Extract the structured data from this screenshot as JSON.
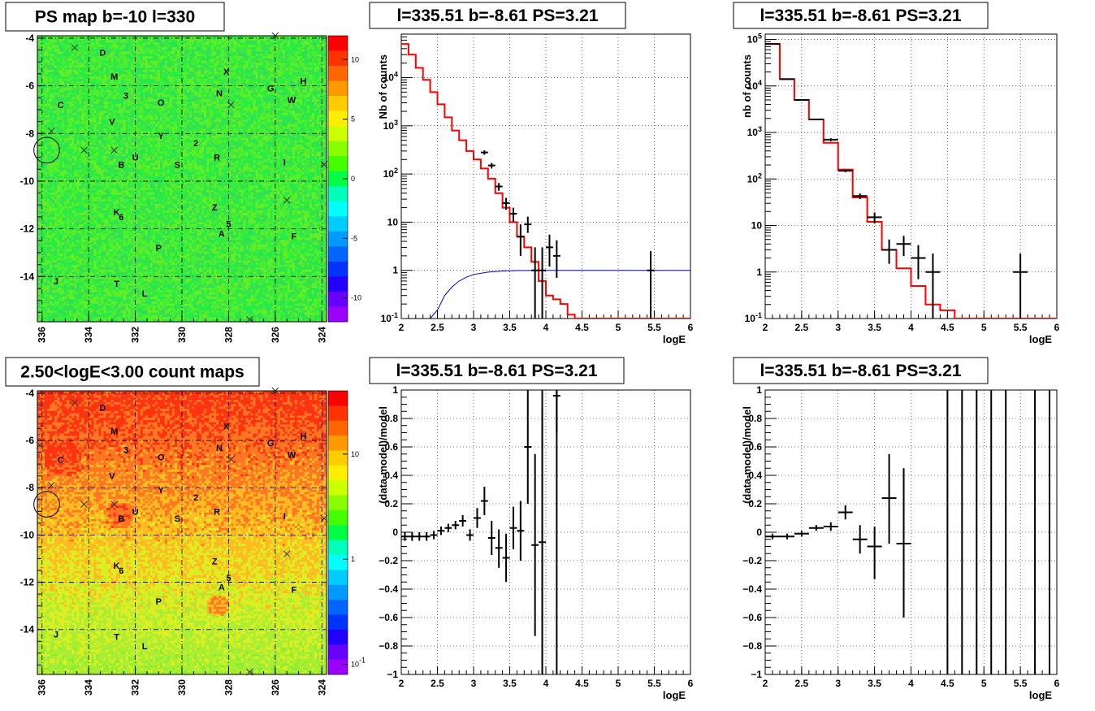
{
  "chart_data": [
    {
      "type": "heatmap",
      "title": "PS map b=-10 l=330",
      "x_ticks": [
        "336",
        "334",
        "332",
        "330",
        "328",
        "326",
        "324"
      ],
      "y_ticks": [
        "-4",
        "-6",
        "-8",
        "-10",
        "-12",
        "-14"
      ],
      "xlim": [
        336.2,
        323.8
      ],
      "ylim": [
        -15.9,
        -3.9
      ],
      "z_ticks": [
        "10",
        "5",
        "0",
        "-5",
        "-10"
      ],
      "z_tick_values": [
        10,
        5,
        0,
        -5,
        -10
      ],
      "zlim": [
        -12,
        12
      ],
      "zscale": "linear",
      "colorbar": [
        "#ff0000",
        "#ff3300",
        "#ff6600",
        "#ff9900",
        "#ffcc00",
        "#ffee00",
        "#ccff00",
        "#88ff00",
        "#44ff00",
        "#00ff44",
        "#00ffbb",
        "#00ffff",
        "#00ccff",
        "#0099ff",
        "#0066ff",
        "#0033ff",
        "#2200ff",
        "#6600ff",
        "#9900ff"
      ],
      "map_colors": [
        "#22ee44",
        "#44ee33",
        "#66ee22",
        "#33dd55"
      ],
      "sources": [
        {
          "label": "D",
          "l": 333.4,
          "b": -4.6
        },
        {
          "label": "M",
          "l": 332.9,
          "b": -5.6
        },
        {
          "label": "X",
          "l": 328.1,
          "b": -5.4
        },
        {
          "label": "H",
          "l": 324.8,
          "b": -5.8
        },
        {
          "label": "G",
          "l": 326.2,
          "b": -6.1
        },
        {
          "label": "N",
          "l": 328.4,
          "b": -6.3
        },
        {
          "label": "W",
          "l": 325.3,
          "b": -6.6
        },
        {
          "label": "C",
          "l": 335.2,
          "b": -6.8
        },
        {
          "label": "3",
          "l": 332.4,
          "b": -6.4
        },
        {
          "label": "O",
          "l": 330.9,
          "b": -6.7
        },
        {
          "label": "V",
          "l": 333.0,
          "b": -7.5
        },
        {
          "label": "Y",
          "l": 330.9,
          "b": -8.1
        },
        {
          "label": "2",
          "l": 329.4,
          "b": -8.4
        },
        {
          "label": "U",
          "l": 332.0,
          "b": -9.0
        },
        {
          "label": "R",
          "l": 328.5,
          "b": -9.0
        },
        {
          "label": "I",
          "l": 325.6,
          "b": -9.2
        },
        {
          "label": "B",
          "l": 332.6,
          "b": -9.3
        },
        {
          "label": "S",
          "l": 330.2,
          "b": -9.3
        },
        {
          "label": "Z",
          "l": 328.6,
          "b": -11.1
        },
        {
          "label": "K",
          "l": 332.8,
          "b": -11.3
        },
        {
          "label": "6",
          "l": 332.6,
          "b": -11.5
        },
        {
          "label": "5",
          "l": 328.0,
          "b": -11.8
        },
        {
          "label": "A",
          "l": 328.3,
          "b": -12.2
        },
        {
          "label": "F",
          "l": 325.2,
          "b": -12.3
        },
        {
          "label": "P",
          "l": 331.0,
          "b": -12.8
        },
        {
          "label": "J",
          "l": 335.4,
          "b": -14.2
        },
        {
          "label": "T",
          "l": 332.8,
          "b": -14.3
        },
        {
          "label": "L",
          "l": 331.6,
          "b": -14.7
        }
      ],
      "crosses": [
        [
          334.6,
          -4.4
        ],
        [
          326.0,
          -3.9
        ],
        [
          327.9,
          -6.8
        ],
        [
          335.6,
          -7.9
        ],
        [
          334.2,
          -8.7
        ],
        [
          332.9,
          -8.7
        ],
        [
          323.9,
          -9.3
        ],
        [
          325.5,
          -10.8
        ],
        [
          327.1,
          -15.8
        ]
      ],
      "circle": {
        "l": 335.8,
        "b": -8.7,
        "r": 0.55
      }
    },
    {
      "type": "line",
      "title": "l=335.51 b=-8.61 PS=3.21",
      "xlabel": "logE",
      "ylabel": "Nb of counts",
      "yscale": "log",
      "xlim": [
        2,
        6
      ],
      "ylim": [
        0.1,
        80000
      ],
      "x_ticks": [
        "2",
        "2.5",
        "3",
        "3.5",
        "4",
        "4.5",
        "5",
        "5.5",
        "6"
      ],
      "y_ticks": [
        "10^-1",
        "1",
        "10",
        "10^2",
        "10^3",
        "10^4"
      ],
      "data_points": {
        "x": [
          3.15,
          3.25,
          3.35,
          3.45,
          3.55,
          3.65,
          3.75,
          3.85,
          3.95,
          4.05,
          4.15,
          5.45
        ],
        "y": [
          280,
          150,
          55,
          25,
          15,
          5,
          9,
          1,
          1,
          3,
          2,
          1
        ],
        "ylo": [
          250,
          130,
          45,
          18,
          10,
          2,
          6,
          0.1,
          0.1,
          1.2,
          0.7,
          0.1
        ],
        "yhi": [
          310,
          170,
          65,
          32,
          20,
          9,
          13,
          3,
          3,
          5.5,
          4.2,
          2.5
        ]
      },
      "model_step": {
        "edges": [
          2.0,
          2.1,
          2.2,
          2.3,
          2.4,
          2.5,
          2.6,
          2.7,
          2.8,
          2.9,
          3.0,
          3.1,
          3.2,
          3.3,
          3.4,
          3.5,
          3.6,
          3.7,
          3.8,
          3.9,
          4.0,
          4.1,
          4.2,
          4.3,
          4.4,
          6.0
        ],
        "values": [
          50000,
          30000,
          16000,
          9000,
          5000,
          2800,
          1500,
          800,
          500,
          300,
          200,
          130,
          80,
          40,
          20,
          10,
          5,
          3,
          1.5,
          0.6,
          0.3,
          0.25,
          0.2,
          0.12,
          0.1
        ]
      },
      "psf_curve": {
        "x": [
          2.4,
          2.5,
          2.6,
          2.7,
          2.8,
          2.9,
          3.0,
          3.2,
          3.4,
          3.6,
          4.0,
          6.0
        ],
        "y": [
          0.1,
          0.15,
          0.3,
          0.45,
          0.6,
          0.72,
          0.82,
          0.92,
          0.97,
          0.99,
          1.0,
          1.0
        ]
      },
      "colors": {
        "data": "#000000",
        "model": "#ff0000",
        "psf": "#0000cc"
      }
    },
    {
      "type": "line",
      "title": "l=335.51 b=-8.61 PS=3.21",
      "xlabel": "logE",
      "ylabel": "nb of counts",
      "yscale": "log",
      "xlim": [
        2,
        6
      ],
      "ylim": [
        0.1,
        130000
      ],
      "x_ticks": [
        "2",
        "2.5",
        "3",
        "3.5",
        "4",
        "4.5",
        "5",
        "5.5",
        "6"
      ],
      "y_ticks": [
        "10^-1",
        "1",
        "10",
        "10^2",
        "10^3",
        "10^4",
        "10^5"
      ],
      "data_points": {
        "x": [
          2.1,
          2.3,
          2.5,
          2.7,
          2.9,
          3.1,
          3.3,
          3.5,
          3.7,
          3.9,
          4.1,
          4.3,
          5.5
        ],
        "y": [
          80000,
          14000,
          5000,
          1900,
          700,
          150,
          43,
          15,
          3,
          4,
          2,
          1,
          1
        ],
        "ylo": [
          78000,
          13500,
          4800,
          1820,
          650,
          140,
          37,
          11,
          1.5,
          2.2,
          0.7,
          0.1,
          0.1
        ],
        "yhi": [
          82000,
          14500,
          5200,
          1980,
          750,
          160,
          49,
          19,
          5,
          6,
          3.8,
          2.5,
          2.5
        ],
        "xhw": 0.1
      },
      "model_step": {
        "edges": [
          2.0,
          2.2,
          2.4,
          2.6,
          2.8,
          3.0,
          3.2,
          3.4,
          3.6,
          3.8,
          4.0,
          4.2,
          4.4,
          4.6,
          6.0
        ],
        "values": [
          80000,
          14000,
          5000,
          1900,
          600,
          160,
          40,
          12,
          3,
          1.2,
          0.5,
          0.2,
          0.15,
          0.1
        ]
      },
      "colors": {
        "data": "#000000",
        "model": "#ff0000"
      }
    },
    {
      "type": "heatmap",
      "title": "2.50<logE<3.00 count maps",
      "x_ticks": [
        "336",
        "334",
        "332",
        "330",
        "328",
        "326",
        "324"
      ],
      "y_ticks": [
        "-4",
        "-6",
        "-8",
        "-10",
        "-12",
        "-14"
      ],
      "xlim": [
        336.2,
        323.8
      ],
      "ylim": [
        -15.9,
        -3.9
      ],
      "z_ticks": [
        "10",
        "1",
        "10^-1"
      ],
      "z_tick_values": [
        10,
        1,
        0.1
      ],
      "zlim": [
        0.08,
        40
      ],
      "zscale": "log",
      "colorbar": [
        "#ff0000",
        "#ff3300",
        "#ff6600",
        "#ff9900",
        "#ffcc00",
        "#ffee00",
        "#ccff00",
        "#88ff00",
        "#44ff00",
        "#00ff44",
        "#00ffbb",
        "#00ffff",
        "#00ccff",
        "#0099ff",
        "#0066ff",
        "#0033ff",
        "#2200ff",
        "#6600ff",
        "#9900ff"
      ],
      "map_colors": [
        "#ff3311",
        "#ff7722",
        "#ffbb22",
        "#ddee22",
        "#aaee33",
        "#88ee33"
      ],
      "sources": [
        {
          "label": "D",
          "l": 333.4,
          "b": -4.6
        },
        {
          "label": "M",
          "l": 332.9,
          "b": -5.6
        },
        {
          "label": "X",
          "l": 328.1,
          "b": -5.4
        },
        {
          "label": "H",
          "l": 324.8,
          "b": -5.8
        },
        {
          "label": "G",
          "l": 326.2,
          "b": -6.1
        },
        {
          "label": "N",
          "l": 328.4,
          "b": -6.3
        },
        {
          "label": "W",
          "l": 325.3,
          "b": -6.6
        },
        {
          "label": "C",
          "l": 335.2,
          "b": -6.8
        },
        {
          "label": "3",
          "l": 332.4,
          "b": -6.4
        },
        {
          "label": "O",
          "l": 330.9,
          "b": -6.7
        },
        {
          "label": "V",
          "l": 333.0,
          "b": -7.5
        },
        {
          "label": "Y",
          "l": 330.9,
          "b": -8.1
        },
        {
          "label": "2",
          "l": 329.4,
          "b": -8.4
        },
        {
          "label": "U",
          "l": 332.0,
          "b": -9.0
        },
        {
          "label": "R",
          "l": 328.5,
          "b": -9.0
        },
        {
          "label": "I",
          "l": 325.6,
          "b": -9.2
        },
        {
          "label": "B",
          "l": 332.6,
          "b": -9.3
        },
        {
          "label": "S",
          "l": 330.2,
          "b": -9.3
        },
        {
          "label": "Z",
          "l": 328.6,
          "b": -11.1
        },
        {
          "label": "K",
          "l": 332.8,
          "b": -11.3
        },
        {
          "label": "6",
          "l": 332.6,
          "b": -11.5
        },
        {
          "label": "5",
          "l": 328.0,
          "b": -11.8
        },
        {
          "label": "A",
          "l": 328.3,
          "b": -12.2
        },
        {
          "label": "F",
          "l": 325.2,
          "b": -12.3
        },
        {
          "label": "P",
          "l": 331.0,
          "b": -12.8
        },
        {
          "label": "J",
          "l": 335.4,
          "b": -14.2
        },
        {
          "label": "T",
          "l": 332.8,
          "b": -14.3
        },
        {
          "label": "L",
          "l": 331.6,
          "b": -14.7
        }
      ],
      "crosses": [
        [
          334.6,
          -4.4
        ],
        [
          326.0,
          -3.9
        ],
        [
          336.1,
          -6.2
        ],
        [
          327.9,
          -6.8
        ],
        [
          335.6,
          -7.9
        ],
        [
          334.2,
          -8.7
        ],
        [
          332.9,
          -8.7
        ],
        [
          323.9,
          -9.3
        ],
        [
          325.5,
          -10.8
        ],
        [
          327.1,
          -15.8
        ]
      ],
      "circle": {
        "l": 335.8,
        "b": -8.7,
        "r": 0.55
      }
    },
    {
      "type": "scatter",
      "title": "l=335.51 b=-8.61 PS=3.21",
      "xlabel": "logE",
      "ylabel": "(data-model)/model",
      "xlim": [
        2,
        6
      ],
      "ylim": [
        -1,
        1
      ],
      "x_ticks": [
        "2",
        "2.5",
        "3",
        "3.5",
        "4",
        "4.5",
        "5",
        "5.5",
        "6"
      ],
      "y_ticks": [
        "−1",
        "−0.8",
        "−0.6",
        "−0.4",
        "−0.2",
        "0",
        "0.2",
        "0.4",
        "0.6",
        "0.8",
        "1"
      ],
      "y_tick_values": [
        -1,
        -0.8,
        -0.6,
        -0.4,
        -0.2,
        0,
        0.2,
        0.4,
        0.6,
        0.8,
        1
      ],
      "points": {
        "x": [
          2.05,
          2.15,
          2.25,
          2.35,
          2.45,
          2.55,
          2.65,
          2.75,
          2.85,
          2.95,
          3.05,
          3.15,
          3.25,
          3.35,
          3.45,
          3.55,
          3.65,
          3.75,
          3.85,
          3.95,
          4.15
        ],
        "y": [
          -0.03,
          -0.03,
          -0.03,
          -0.03,
          -0.02,
          0.01,
          0.03,
          0.05,
          0.08,
          -0.02,
          0.1,
          0.22,
          -0.04,
          -0.11,
          -0.18,
          0.03,
          0.01,
          0.6,
          -0.09,
          -0.07,
          0.96
        ],
        "ylo": [
          -0.06,
          -0.06,
          -0.06,
          -0.06,
          -0.05,
          -0.02,
          0.0,
          0.02,
          0.04,
          -0.06,
          0.03,
          0.12,
          -0.16,
          -0.25,
          -0.35,
          -0.12,
          -0.2,
          0.2,
          -0.73,
          -1.0,
          0.7
        ],
        "yhi": [
          0.0,
          0.0,
          0.0,
          0.0,
          0.01,
          0.04,
          0.06,
          0.08,
          0.12,
          0.02,
          0.17,
          0.32,
          0.08,
          0.02,
          -0.01,
          0.18,
          0.22,
          1.0,
          0.55,
          0.87,
          1.0
        ],
        "xhw": 0.05
      },
      "full_bars": [
        3.95,
        4.15
      ],
      "colors": {
        "data": "#000000"
      }
    },
    {
      "type": "scatter",
      "title": "l=335.51 b=-8.61 PS=3.21",
      "xlabel": "logE",
      "ylabel": "(data-model)/model",
      "xlim": [
        2,
        6
      ],
      "ylim": [
        -1,
        1
      ],
      "x_ticks": [
        "2",
        "2.5",
        "3",
        "3.5",
        "4",
        "4.5",
        "5",
        "5.5",
        "6"
      ],
      "y_ticks": [
        "−1",
        "−0.8",
        "−0.6",
        "−0.4",
        "−0.2",
        "0",
        "0.2",
        "0.4",
        "0.6",
        "0.8",
        "1"
      ],
      "y_tick_values": [
        -1,
        -0.8,
        -0.6,
        -0.4,
        -0.2,
        0,
        0.2,
        0.4,
        0.6,
        0.8,
        1
      ],
      "points": {
        "x": [
          2.1,
          2.3,
          2.5,
          2.7,
          2.9,
          3.1,
          3.3,
          3.5,
          3.7,
          3.9
        ],
        "y": [
          -0.03,
          -0.03,
          -0.01,
          0.03,
          0.04,
          0.14,
          -0.05,
          -0.1,
          0.24,
          -0.08
        ],
        "ylo": [
          -0.05,
          -0.05,
          -0.03,
          0.01,
          0.01,
          0.09,
          -0.15,
          -0.33,
          -0.08,
          -0.6
        ],
        "yhi": [
          -0.01,
          -0.01,
          0.01,
          0.05,
          0.07,
          0.19,
          0.05,
          0.04,
          0.55,
          0.45
        ],
        "xhw": 0.1
      },
      "full_bars": [
        4.5,
        4.7,
        4.9,
        5.1,
        5.3,
        5.7,
        5.9
      ],
      "colors": {
        "data": "#000000"
      }
    }
  ]
}
